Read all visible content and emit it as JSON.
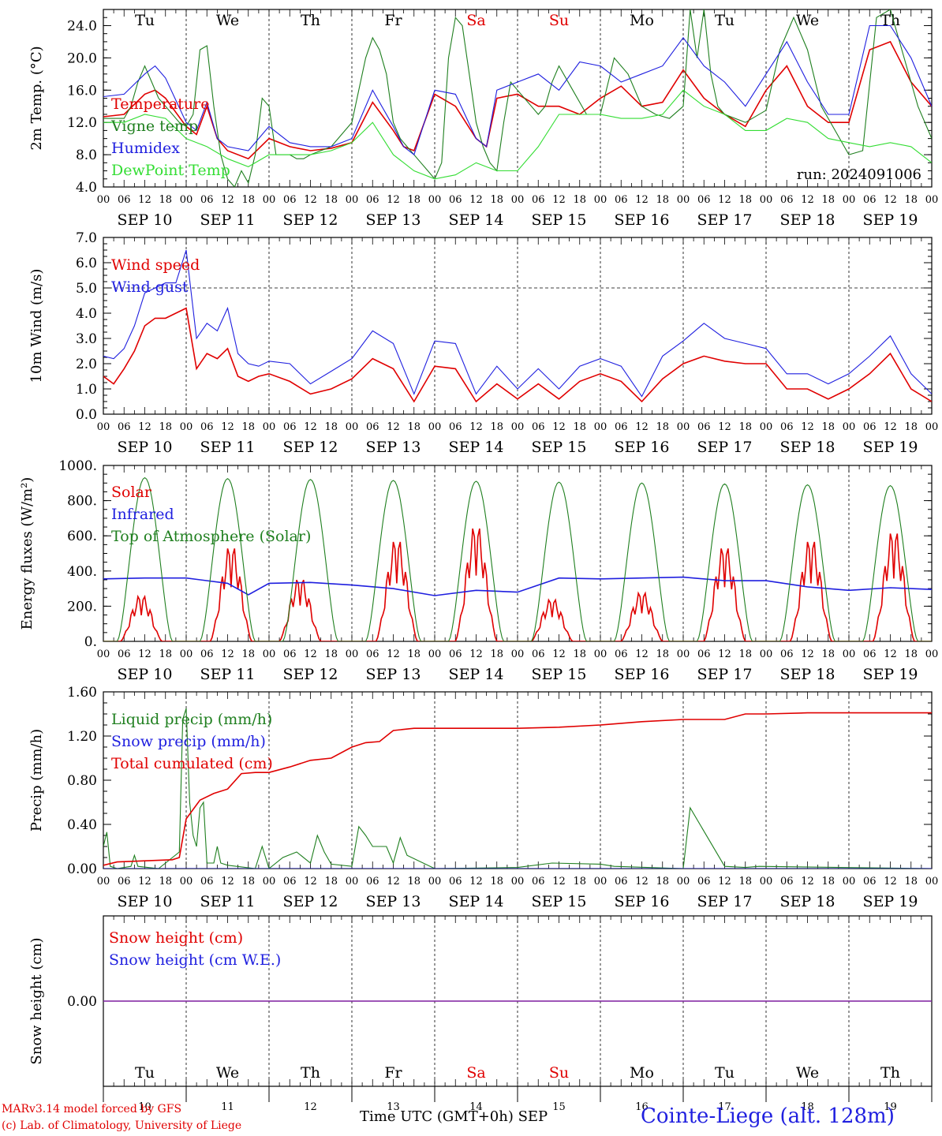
{
  "footer": {
    "credit_line1": "MARv3.14 model forced by GFS",
    "credit_line2": "(c) Lab. of Climatology, University of Liege",
    "xaxis_title": "Time UTC (GMT+0h) SEP",
    "station": "Cointe-Liege (alt. 128m)"
  },
  "colors": {
    "red": "#e00000",
    "blue": "#1f1fdf",
    "dark_green": "#1f7f1f",
    "light_green": "#33dd33",
    "purple": "#7f1f9f",
    "weekend": "#e00000"
  },
  "days": {
    "weekday_labels": [
      "Tu",
      "We",
      "Th",
      "Fr",
      "Sa",
      "Su",
      "Mo",
      "Tu",
      "We",
      "Th"
    ],
    "weekend_flags": [
      false,
      false,
      false,
      false,
      true,
      true,
      false,
      false,
      false,
      false
    ],
    "date_labels": [
      "SEP 10",
      "SEP 11",
      "SEP 12",
      "SEP 13",
      "SEP 14",
      "SEP 15",
      "SEP 16",
      "SEP 17",
      "SEP 18",
      "SEP 19"
    ],
    "day_numbers": [
      "10",
      "11",
      "12",
      "13",
      "14",
      "15",
      "16",
      "17",
      "18",
      "19"
    ],
    "hour_labels": [
      "00",
      "06",
      "12",
      "18"
    ],
    "final_hour_label": "00"
  },
  "chart_data": [
    {
      "type": "line",
      "id": "temperature",
      "ylabel": "2m Temp. (°C)",
      "ylim": [
        4,
        26
      ],
      "yticks": [
        4,
        8,
        12,
        16,
        20,
        24
      ],
      "ytick_labels": [
        "4.0",
        "8.0",
        "12.0",
        "16.0",
        "20.0",
        "24.0"
      ],
      "x_unit": "hours since SEP 10 00 UTC",
      "annotation": "run: 2024091006",
      "series": [
        {
          "name": "Temperature",
          "color": "#e00000",
          "x": [
            0,
            6,
            12,
            15,
            18,
            24,
            27,
            30,
            33,
            36,
            42,
            48,
            54,
            60,
            66,
            72,
            78,
            84,
            87,
            90,
            96,
            102,
            108,
            111,
            114,
            120,
            126,
            132,
            138,
            144,
            150,
            156,
            162,
            168,
            174,
            180,
            186,
            192,
            198,
            204,
            210,
            216,
            222,
            228,
            234,
            240
          ],
          "y": [
            12.7,
            13,
            15.5,
            16,
            15,
            11.5,
            10.5,
            14,
            10,
            8.5,
            7.5,
            10,
            9,
            8.5,
            8.8,
            9.5,
            14.5,
            11,
            9,
            8.5,
            15.5,
            14,
            10,
            9,
            15,
            15.5,
            14,
            14,
            13,
            15,
            16.5,
            14,
            14.5,
            18.5,
            15,
            13,
            11.5,
            16,
            19,
            14,
            12,
            12,
            21,
            22,
            17,
            14
          ]
        },
        {
          "name": "Vigne temp",
          "color": "#1f7f1f",
          "x": [
            0,
            6,
            8,
            10,
            12,
            14,
            16,
            18,
            22,
            24,
            26,
            28,
            30,
            32,
            34,
            36,
            38,
            40,
            42,
            44,
            46,
            48,
            50,
            52,
            54,
            56,
            58,
            60,
            66,
            72,
            76,
            78,
            80,
            82,
            84,
            86,
            88,
            90,
            92,
            94,
            96,
            98,
            100,
            102,
            104,
            106,
            108,
            110,
            112,
            114,
            116,
            118,
            120,
            124,
            126,
            128,
            130,
            132,
            136,
            140,
            144,
            148,
            152,
            156,
            160,
            164,
            168,
            170,
            172,
            174,
            176,
            178,
            180,
            186,
            192,
            196,
            200,
            204,
            208,
            212,
            216,
            220,
            224,
            228,
            232,
            236,
            240
          ],
          "y": [
            12.5,
            12.5,
            14,
            17,
            19,
            17,
            15,
            14,
            12,
            11.5,
            13,
            21,
            21.5,
            14,
            8,
            5,
            4,
            6,
            4.5,
            8,
            15,
            14,
            8,
            8,
            8,
            7.5,
            7.5,
            8,
            9,
            12,
            20,
            22.5,
            21,
            18,
            12,
            10,
            9,
            8,
            7,
            6,
            5,
            7,
            20,
            25,
            24,
            18,
            12,
            9,
            7,
            6,
            12,
            17,
            16,
            14,
            13,
            14,
            17,
            19,
            16,
            13,
            13,
            20,
            18,
            14,
            13,
            12.5,
            14,
            26,
            20,
            26,
            18,
            14,
            13,
            12,
            13.5,
            21,
            25,
            21,
            14,
            11,
            8,
            8.5,
            25,
            26,
            20,
            14,
            10
          ]
        },
        {
          "name": "Humidex",
          "color": "#1f1fdf",
          "x": [
            0,
            6,
            12,
            15,
            18,
            24,
            27,
            30,
            33,
            36,
            42,
            48,
            54,
            60,
            66,
            72,
            78,
            84,
            87,
            90,
            96,
            102,
            108,
            111,
            114,
            120,
            126,
            132,
            138,
            144,
            150,
            156,
            162,
            168,
            174,
            180,
            186,
            192,
            198,
            204,
            210,
            216,
            222,
            228,
            234,
            240
          ],
          "y": [
            15.2,
            15.5,
            18,
            19,
            17.5,
            12,
            11,
            14.5,
            10,
            9,
            8.5,
            11.5,
            9.5,
            9,
            9,
            10,
            16,
            11.5,
            9,
            8,
            16,
            15.5,
            10,
            9,
            16,
            17,
            18,
            16,
            19.5,
            19,
            17,
            18,
            19,
            22.5,
            19,
            17,
            14,
            18,
            22,
            17,
            13,
            13,
            24,
            24,
            20,
            14
          ]
        },
        {
          "name": "DewPoint Temp",
          "color": "#33dd33",
          "x": [
            0,
            6,
            12,
            18,
            24,
            30,
            36,
            42,
            48,
            54,
            60,
            66,
            72,
            78,
            84,
            90,
            96,
            102,
            108,
            114,
            120,
            126,
            132,
            138,
            144,
            150,
            156,
            162,
            168,
            174,
            180,
            186,
            192,
            198,
            204,
            210,
            216,
            222,
            228,
            234,
            240
          ],
          "y": [
            12,
            12,
            13,
            12.5,
            10,
            9,
            7.5,
            6.5,
            8,
            8,
            8,
            8.5,
            9.5,
            12,
            8,
            6,
            5,
            5.5,
            7,
            6,
            6,
            9,
            13,
            13,
            13,
            12.5,
            12.5,
            13,
            16,
            14,
            13,
            11,
            11,
            12.5,
            12,
            10,
            9.5,
            9,
            9.5,
            9,
            7
          ]
        }
      ]
    },
    {
      "type": "line",
      "id": "wind",
      "ylabel": "10m Wind (m/s)",
      "ylim": [
        0,
        7
      ],
      "yticks": [
        0,
        1,
        2,
        3,
        4,
        5,
        6,
        7
      ],
      "ytick_labels": [
        "0.0",
        "1.0",
        "2.0",
        "3.0",
        "4.0",
        "5.0",
        "6.0",
        "7.0"
      ],
      "reference_line": 5,
      "series": [
        {
          "name": "Wind speed",
          "color": "#e00000",
          "x": [
            0,
            3,
            6,
            9,
            12,
            15,
            18,
            21,
            24,
            27,
            30,
            33,
            36,
            39,
            42,
            45,
            48,
            54,
            60,
            66,
            72,
            78,
            84,
            90,
            96,
            102,
            108,
            114,
            120,
            126,
            132,
            138,
            144,
            150,
            156,
            162,
            168,
            174,
            180,
            186,
            192,
            198,
            204,
            210,
            216,
            222,
            228,
            234,
            240
          ],
          "y": [
            1.5,
            1.2,
            1.8,
            2.5,
            3.5,
            3.8,
            3.8,
            4.0,
            4.2,
            1.8,
            2.4,
            2.2,
            2.6,
            1.5,
            1.3,
            1.5,
            1.6,
            1.3,
            0.8,
            1.0,
            1.4,
            2.2,
            1.8,
            0.5,
            1.9,
            1.8,
            0.5,
            1.2,
            0.6,
            1.2,
            0.6,
            1.3,
            1.6,
            1.3,
            0.5,
            1.4,
            2.0,
            2.3,
            2.1,
            2.0,
            2.0,
            1.0,
            1.0,
            0.6,
            1.0,
            1.6,
            2.4,
            1.0,
            0.5
          ]
        },
        {
          "name": "Wind gust",
          "color": "#1f1fdf",
          "x": [
            0,
            3,
            6,
            9,
            12,
            15,
            18,
            21,
            24,
            27,
            30,
            33,
            36,
            39,
            42,
            45,
            48,
            54,
            60,
            66,
            72,
            78,
            84,
            90,
            96,
            102,
            108,
            114,
            120,
            126,
            132,
            138,
            144,
            150,
            156,
            162,
            168,
            174,
            180,
            186,
            192,
            198,
            204,
            210,
            216,
            222,
            228,
            234,
            240
          ],
          "y": [
            2.3,
            2.2,
            2.6,
            3.5,
            4.8,
            5.0,
            5.2,
            5.2,
            6.5,
            3.0,
            3.6,
            3.3,
            4.2,
            2.4,
            2.0,
            1.9,
            2.1,
            2.0,
            1.2,
            1.7,
            2.2,
            3.3,
            2.8,
            0.8,
            2.9,
            2.8,
            0.8,
            1.9,
            1.0,
            1.8,
            1.0,
            1.9,
            2.2,
            1.9,
            0.7,
            2.3,
            2.9,
            3.6,
            3.0,
            2.8,
            2.6,
            1.6,
            1.6,
            1.2,
            1.6,
            2.3,
            3.1,
            1.6,
            0.8
          ]
        }
      ]
    },
    {
      "type": "line",
      "id": "energy",
      "ylabel": "Energy fluxes (W/m²)",
      "ylim": [
        0,
        1000
      ],
      "yticks": [
        0,
        200,
        400,
        600,
        800,
        1000
      ],
      "ytick_labels": [
        "0.",
        "200.",
        "400.",
        "600.",
        "800.",
        "1000."
      ],
      "series": [
        {
          "name": "Solar",
          "color": "#e00000",
          "daily_peak_x": [
            11,
            13,
            9,
            13,
            12,
            10,
            12,
            12,
            13,
            13
          ],
          "daily_peak_y": [
            270,
            560,
            370,
            600,
            680,
            250,
            290,
            560,
            600,
            650
          ]
        },
        {
          "name": "Infrared",
          "color": "#1f1fdf",
          "x": [
            0,
            12,
            24,
            36,
            42,
            48,
            60,
            72,
            84,
            96,
            108,
            120,
            132,
            144,
            156,
            168,
            180,
            192,
            204,
            216,
            228,
            240
          ],
          "y": [
            355,
            360,
            360,
            330,
            265,
            330,
            335,
            320,
            300,
            260,
            290,
            280,
            360,
            355,
            360,
            365,
            345,
            345,
            310,
            290,
            305,
            295
          ]
        },
        {
          "name": "Top of Atmosphere (Solar)",
          "color": "#1f7f1f",
          "daily_peak_x": [
            12,
            12,
            12,
            12,
            12,
            12,
            12,
            12,
            12,
            12
          ],
          "daily_peak_y": [
            930,
            925,
            920,
            915,
            910,
            905,
            900,
            895,
            890,
            885
          ]
        }
      ]
    },
    {
      "type": "line",
      "id": "precip",
      "ylabel": "Precip (mm/h)",
      "ylim": [
        0,
        1.6
      ],
      "yticks": [
        0,
        0.4,
        0.8,
        1.2,
        1.6
      ],
      "ytick_labels": [
        "0.00",
        "0.40",
        "0.80",
        "1.20",
        "1.60"
      ],
      "series": [
        {
          "name": "Liquid precip (mm/h)",
          "color": "#1f7f1f",
          "x": [
            0,
            1,
            2,
            4,
            8,
            9,
            10,
            16,
            22,
            23,
            24,
            25,
            26,
            27,
            28,
            29,
            30,
            32,
            33,
            34,
            36,
            44,
            46,
            48,
            52,
            56,
            60,
            62,
            64,
            66,
            72,
            74,
            76,
            78,
            82,
            84,
            86,
            88,
            96,
            120,
            130,
            144,
            148,
            168,
            170,
            180,
            186,
            190,
            240
          ],
          "y": [
            0.2,
            0.33,
            0.02,
            0,
            0.02,
            0.12,
            0.02,
            0,
            0.15,
            1.35,
            1.45,
            0.6,
            0.3,
            0.2,
            0.55,
            0.6,
            0.05,
            0.05,
            0.2,
            0.05,
            0.03,
            0,
            0.2,
            0,
            0.1,
            0.15,
            0.05,
            0.3,
            0.15,
            0.04,
            0.02,
            0.38,
            0.3,
            0.2,
            0.2,
            0.05,
            0.28,
            0.12,
            0,
            0.01,
            0.05,
            0.04,
            0.02,
            0,
            0.55,
            0.02,
            0.01,
            0.02,
            0
          ]
        },
        {
          "name": "Snow precip (mm/h)",
          "color": "#1f1fdf",
          "x": [
            0,
            240
          ],
          "y": [
            0,
            0
          ]
        },
        {
          "name": "Total cumulated (cm)",
          "color": "#e00000",
          "x": [
            0,
            4,
            20,
            22,
            24,
            28,
            32,
            36,
            40,
            44,
            48,
            54,
            60,
            66,
            72,
            76,
            80,
            84,
            90,
            96,
            108,
            120,
            132,
            144,
            156,
            168,
            180,
            186,
            192,
            204,
            216,
            228,
            240
          ],
          "y": [
            0.03,
            0.06,
            0.08,
            0.1,
            0.45,
            0.62,
            0.68,
            0.72,
            0.86,
            0.87,
            0.87,
            0.92,
            0.98,
            1.0,
            1.1,
            1.14,
            1.15,
            1.25,
            1.27,
            1.27,
            1.27,
            1.27,
            1.28,
            1.3,
            1.33,
            1.35,
            1.35,
            1.4,
            1.4,
            1.41,
            1.41,
            1.41,
            1.41
          ]
        }
      ]
    },
    {
      "type": "line",
      "id": "snow",
      "ylabel": "Snow height (cm)",
      "ylim": [
        -1,
        1
      ],
      "yticks": [
        0
      ],
      "ytick_labels": [
        "0.00"
      ],
      "series": [
        {
          "name": "Snow height (cm)",
          "color": "#e00000",
          "x": [
            0,
            240
          ],
          "y": [
            0,
            0
          ]
        },
        {
          "name": "Snow height (cm W.E.)",
          "color": "#1f1fdf",
          "x": [
            0,
            240
          ],
          "y": [
            0,
            0
          ]
        }
      ]
    }
  ]
}
